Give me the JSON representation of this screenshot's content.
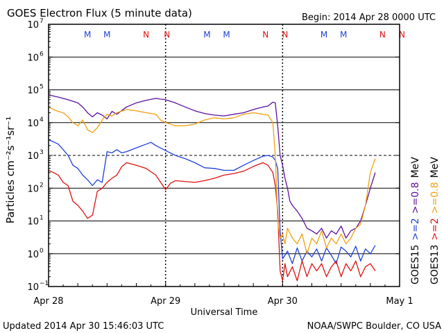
{
  "header": {
    "title": "GOES Electron Flux (5 minute data)",
    "begin": "Begin: 2014 Apr 28 0000 UTC"
  },
  "footer": {
    "updated": "Updated 2014 Apr 30 15:46:03 UTC",
    "source": "NOAA/SWPC Boulder, CO USA"
  },
  "colors": {
    "goes15_ge2": "#1f3fd8",
    "goes13_ge2": "#e01010",
    "goes15_ge08": "#5b0fa0",
    "goes13_ge08": "#f0a010",
    "marker_m": "#1f3fd8",
    "marker_n": "#e01010"
  },
  "chart_data": {
    "type": "line",
    "title": "GOES Electron Flux (5 minute data)",
    "xlabel": "Universal Time",
    "ylabel": "Particles cm⁻²s⁻¹sr⁻¹",
    "y_scale": "log",
    "ylim": [
      0.1,
      10000000
    ],
    "xlim": [
      0,
      72
    ],
    "x_unit": "hours since 2014 Apr 28 0000 UTC",
    "x_ticks": [
      {
        "x": 0,
        "label": "Apr 28"
      },
      {
        "x": 24,
        "label": "Apr 29"
      },
      {
        "x": 48,
        "label": "Apr 30"
      },
      {
        "x": 72,
        "label": "May 1"
      }
    ],
    "y_ticks": [
      {
        "exp": -1,
        "value": 0.1
      },
      {
        "exp": 0,
        "value": 1
      },
      {
        "exp": 1,
        "value": 10
      },
      {
        "exp": 2,
        "value": 100
      },
      {
        "exp": 3,
        "value": 1000
      },
      {
        "exp": 4,
        "value": 10000
      },
      {
        "exp": 5,
        "value": 100000
      },
      {
        "exp": 6,
        "value": 1000000
      },
      {
        "exp": 7,
        "value": 10000000
      }
    ],
    "threshold": {
      "value": 1000,
      "style": "dashed"
    },
    "markers": [
      {
        "x": 8,
        "label": "M"
      },
      {
        "x": 12,
        "label": "M"
      },
      {
        "x": 20,
        "label": "N"
      },
      {
        "x": 24.3,
        "label": "N"
      },
      {
        "x": 32.5,
        "label": "M"
      },
      {
        "x": 36.5,
        "label": "M"
      },
      {
        "x": 44.5,
        "label": "N"
      },
      {
        "x": 48.5,
        "label": "N"
      },
      {
        "x": 56.5,
        "label": "M"
      },
      {
        "x": 60.5,
        "label": "M"
      },
      {
        "x": 68.5,
        "label": "N"
      },
      {
        "x": 72.5,
        "label": "N"
      }
    ],
    "legend": {
      "row1": [
        {
          "text": "GOES15",
          "color": "#000000"
        },
        {
          "text": ">=2",
          "color": "#1f3fd8"
        },
        {
          "text": ">=0.8",
          "color": "#5b0fa0"
        },
        {
          "text": "MeV",
          "color": "#000000"
        }
      ],
      "row2": [
        {
          "text": "GOES13",
          "color": "#000000"
        },
        {
          "text": ">=2",
          "color": "#e01010"
        },
        {
          "text": ">=0.8",
          "color": "#f0a010"
        },
        {
          "text": "MeV",
          "color": "#000000"
        }
      ]
    },
    "series": [
      {
        "name": "GOES15 >=2 MeV",
        "color": "#1f3fd8",
        "x": [
          0,
          1,
          2,
          3,
          4,
          5,
          6,
          7,
          8,
          9,
          10,
          11,
          12,
          13,
          14,
          15,
          16,
          18,
          20,
          21,
          22,
          24,
          26,
          28,
          30,
          32,
          34,
          36,
          38,
          40,
          42,
          44,
          45,
          46,
          46.5,
          47,
          47.5,
          48,
          48.5,
          49,
          50,
          51,
          52,
          53,
          54,
          55,
          56,
          57,
          58,
          59,
          60,
          61,
          62,
          63,
          64,
          65,
          66,
          67
        ],
        "y": [
          3000,
          2600,
          2200,
          1500,
          1000,
          500,
          400,
          250,
          180,
          120,
          180,
          150,
          1300,
          1200,
          1500,
          1200,
          1300,
          1700,
          2200,
          2500,
          2000,
          1400,
          1000,
          800,
          600,
          420,
          400,
          350,
          350,
          500,
          700,
          950,
          1000,
          900,
          700,
          400,
          5,
          0.7,
          0.9,
          1.2,
          0.5,
          1.5,
          0.6,
          1.2,
          0.8,
          1.4,
          0.6,
          1.5,
          0.9,
          0.5,
          1.6,
          1.2,
          0.8,
          1.7,
          0.6,
          1.4,
          1.0,
          1.8
        ]
      },
      {
        "name": "GOES13 >=2 MeV",
        "color": "#e01010",
        "x": [
          0,
          1,
          2,
          3,
          4,
          5,
          6,
          7,
          8,
          9,
          10,
          11,
          12,
          13,
          14,
          15,
          16,
          18,
          20,
          22,
          23,
          24,
          25,
          26,
          28,
          30,
          32,
          34,
          36,
          38,
          40,
          42,
          44,
          45,
          46,
          46.5,
          47,
          47.5,
          48,
          48.5,
          49,
          50,
          51,
          52,
          53,
          54,
          55,
          56,
          57,
          58,
          59,
          60,
          61,
          62,
          63,
          64,
          65,
          66,
          67
        ],
        "y": [
          350,
          300,
          250,
          150,
          120,
          40,
          30,
          20,
          12,
          15,
          80,
          100,
          150,
          200,
          250,
          450,
          600,
          500,
          400,
          250,
          150,
          90,
          140,
          170,
          160,
          150,
          170,
          200,
          250,
          280,
          330,
          460,
          600,
          500,
          300,
          120,
          20,
          0.3,
          0.15,
          0.5,
          0.2,
          0.4,
          0.15,
          0.6,
          0.2,
          0.5,
          0.3,
          0.5,
          0.2,
          0.4,
          0.6,
          0.2,
          0.5,
          0.3,
          0.6,
          0.2,
          0.4,
          0.5,
          0.3
        ]
      },
      {
        "name": "GOES15 >=0.8 MeV",
        "color": "#5b0fa0",
        "x": [
          0,
          2,
          4,
          6,
          7,
          8,
          9,
          10,
          11,
          12,
          13,
          14,
          16,
          18,
          20,
          22,
          23,
          24,
          26,
          28,
          30,
          32,
          34,
          36,
          38,
          40,
          42,
          44,
          45,
          46,
          46.5,
          47,
          47.5,
          48,
          48.5,
          49,
          49.5,
          50,
          51,
          52,
          53,
          54,
          55,
          56,
          57,
          58,
          59,
          60,
          61,
          62,
          63,
          64,
          65,
          66,
          67
        ],
        "y": [
          70000,
          60000,
          50000,
          40000,
          30000,
          20000,
          15000,
          20000,
          17000,
          13000,
          22000,
          18000,
          30000,
          40000,
          48000,
          55000,
          52000,
          50000,
          40000,
          30000,
          23000,
          19000,
          17000,
          16000,
          18000,
          20000,
          25000,
          30000,
          32000,
          42000,
          40000,
          8000,
          1000,
          500,
          200,
          100,
          40,
          30,
          20,
          12,
          6,
          5,
          4,
          6,
          3,
          5,
          4,
          7,
          3,
          5,
          6,
          10,
          30,
          100,
          300
        ]
      },
      {
        "name": "GOES13 >=0.8 MeV",
        "color": "#f0a010",
        "x": [
          0,
          1,
          2,
          3,
          4,
          5,
          6,
          7,
          8,
          9,
          10,
          11,
          12,
          13,
          14,
          16,
          18,
          20,
          22,
          23,
          24,
          26,
          28,
          30,
          32,
          34,
          36,
          38,
          40,
          42,
          44,
          45,
          46,
          46.5,
          47,
          47.5,
          48,
          48.5,
          49,
          50,
          51,
          52,
          53,
          54,
          55,
          56,
          57,
          58,
          59,
          60,
          61,
          62,
          63,
          64,
          65,
          66,
          67
        ],
        "y": [
          30000,
          25000,
          22000,
          20000,
          15000,
          10000,
          8000,
          12000,
          6000,
          5000,
          7000,
          12000,
          18000,
          16000,
          20000,
          25000,
          23000,
          20000,
          18000,
          12000,
          10000,
          8000,
          8000,
          9000,
          12000,
          14000,
          13000,
          14000,
          18000,
          20000,
          18000,
          17000,
          10000,
          1000,
          10,
          3,
          4,
          2,
          6,
          3,
          2,
          4,
          1,
          3,
          2,
          5,
          1.5,
          3,
          2,
          4,
          2,
          3,
          6,
          8,
          30,
          300,
          800
        ]
      }
    ]
  }
}
